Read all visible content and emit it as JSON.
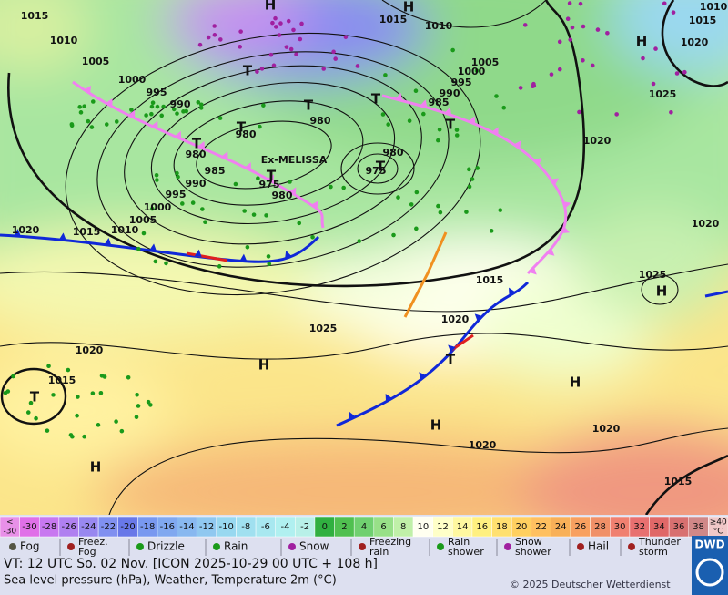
{
  "map": {
    "labels": [
      "1015",
      "1010",
      "1005",
      "1000",
      "995",
      "990",
      "985",
      "990",
      "995",
      "1000",
      "1005",
      "1010",
      "1015",
      "1020",
      "980",
      "980",
      "975",
      "980",
      "975",
      "980",
      "980",
      "985",
      "990",
      "995",
      "1000",
      "1005",
      "1010",
      "1015",
      "1015",
      "1010",
      "1020",
      "1025",
      "1020",
      "1020",
      "1025",
      "1015",
      "1020",
      "1025",
      "1020",
      "1015",
      "1020",
      "1020",
      "1015",
      "Ex-MELISSA",
      "H",
      "H",
      "H",
      "H",
      "H",
      "H",
      "H",
      "H",
      "T",
      "T",
      "T",
      "T",
      "T",
      "T",
      "T",
      "T",
      "T",
      "T"
    ]
  },
  "legend": {
    "scale": [
      [
        "<",
        "-30"
      ],
      "-30",
      "-28",
      "-26",
      "-24",
      "-22",
      "-20",
      "-18",
      "-16",
      "-14",
      "-12",
      "-10",
      "-8",
      "-6",
      "-4",
      "-2",
      "0",
      "2",
      "4",
      "6",
      "8",
      "10",
      "12",
      "14",
      "16",
      "18",
      "20",
      "22",
      "24",
      "26",
      "28",
      "30",
      "32",
      "34",
      "36",
      "38",
      [
        "≥40",
        "°C"
      ]
    ],
    "scale_colors": [
      "#e890e8",
      "#e070e8",
      "#c878f0",
      "#b080f0",
      "#9888f0",
      "#8090f0",
      "#6878e8",
      "#7898f0",
      "#80a8f0",
      "#88b8f0",
      "#90c8f0",
      "#98d8f0",
      "#a0e0f0",
      "#a8e8f0",
      "#b0f0f0",
      "#b8f0e8",
      "#30b040",
      "#50c050",
      "#70d070",
      "#98e088",
      "#c0f0a8",
      "#fffff0",
      "#ffffc8",
      "#fff8a0",
      "#fff080",
      "#ffe070",
      "#ffd060",
      "#ffc060",
      "#f8b058",
      "#f8a060",
      "#f09068",
      "#f08070",
      "#e87070",
      "#e06868",
      "#d87070",
      "#d08888",
      "#f0c8c8"
    ],
    "weather": [
      "Fog",
      [
        "Freez.",
        "Fog"
      ],
      "Drizzle",
      "Rain",
      "Snow",
      [
        "Freezing",
        "rain"
      ],
      [
        "Rain",
        "shower"
      ],
      [
        "Snow",
        "shower"
      ],
      "Hail",
      [
        "Thunder",
        "storm"
      ]
    ]
  },
  "footer": {
    "valid_time": "VT: 12 UTC So.  02 Nov. [ICON 2025-10-29  00 UTC + 108 h]",
    "subtitle": "Sea level pressure (hPa), Weather, Temperature 2m (°C)",
    "copyright": "© 2025 Deutscher Wetterdienst",
    "logo": "DWD"
  }
}
